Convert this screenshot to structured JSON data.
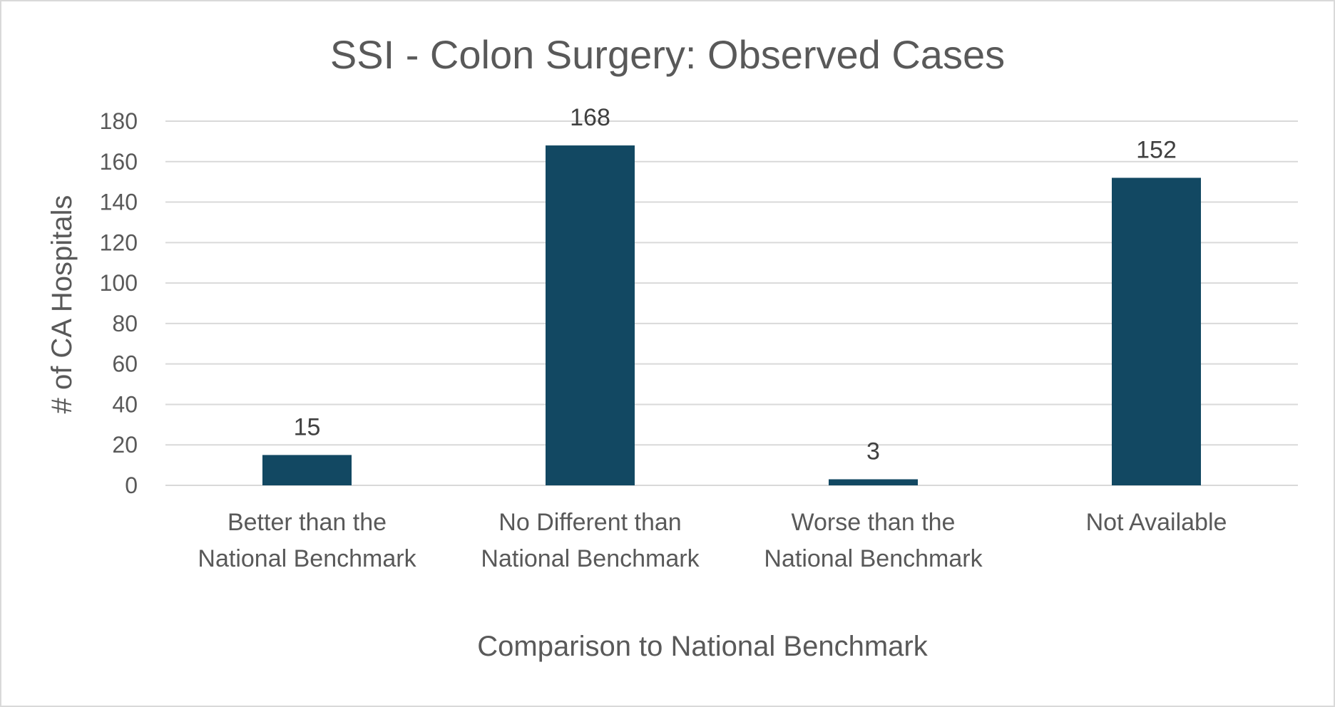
{
  "chart_data": {
    "type": "bar",
    "title": "SSI - Colon Surgery: Observed Cases",
    "xlabel": "Comparison to National Benchmark",
    "ylabel": "# of CA Hospitals",
    "categories": [
      [
        "Better than the",
        "National Benchmark"
      ],
      [
        "No Different than",
        "National Benchmark"
      ],
      [
        "Worse than the",
        "National Benchmark"
      ],
      [
        "Not Available"
      ]
    ],
    "values": [
      15,
      168,
      3,
      152
    ],
    "data_labels": [
      "15",
      "168",
      "3",
      "152"
    ],
    "ylim": [
      0,
      180
    ],
    "yticks": [
      "0",
      "20",
      "40",
      "60",
      "80",
      "100",
      "120",
      "140",
      "160",
      "180"
    ],
    "grid": true,
    "legend": "none",
    "bar_color": "#124862",
    "grid_color": "#d9d9d9"
  }
}
